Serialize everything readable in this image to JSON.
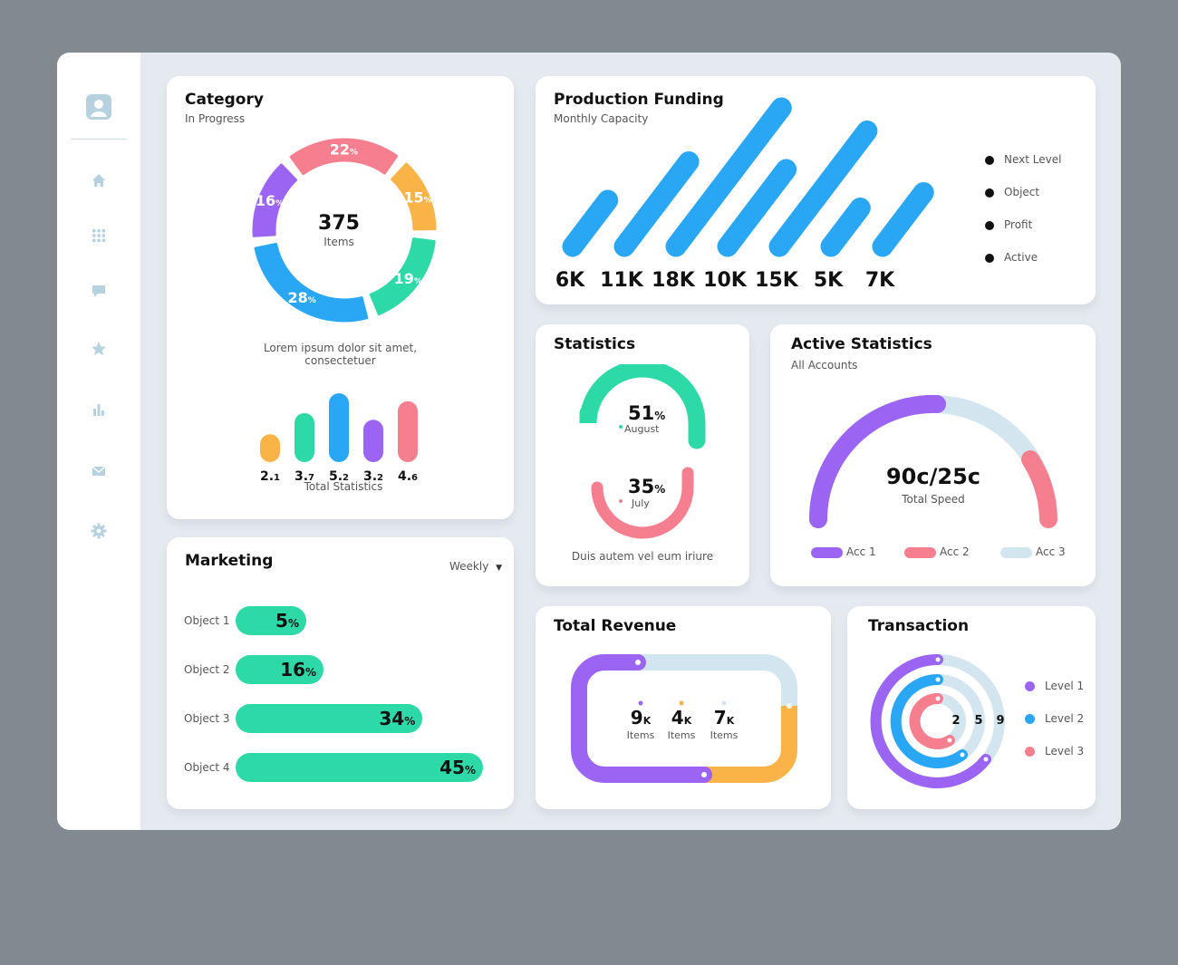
{
  "colors": {
    "purple": "#9c64f3",
    "pink": "#f57f8f",
    "orange": "#f9b347",
    "green": "#2ed9a8",
    "blue": "#2aa7f4",
    "lightblue": "#d3e6f0",
    "sidebar_icon": "#b6d2e0"
  },
  "sidebar": {
    "items": [
      {
        "icon": "user-avatar-icon"
      },
      {
        "icon": "home-icon"
      },
      {
        "icon": "grid-icon"
      },
      {
        "icon": "chat-icon"
      },
      {
        "icon": "star-icon"
      },
      {
        "icon": "bar-chart-icon"
      },
      {
        "icon": "mail-icon"
      },
      {
        "icon": "gear-icon"
      }
    ]
  },
  "category": {
    "title": "Category",
    "subtitle": "In Progress",
    "center_value": "375",
    "center_label": "Items",
    "description_line1": "Lorem ipsum dolor sit amet,",
    "description_line2": "consectetuer",
    "mini_chart_label": "Total Statistics"
  },
  "production": {
    "title": "Production Funding",
    "subtitle": "Monthly Capacity",
    "legend": [
      "Next Level",
      "Object",
      "Profit",
      "Active"
    ]
  },
  "statistics": {
    "title": "Statistics",
    "top_value": "51",
    "top_unit": "%",
    "top_label": "August",
    "bottom_value": "35",
    "bottom_unit": "%",
    "bottom_label": "July",
    "footer": "Duis autem vel eum iriure"
  },
  "active_statistics": {
    "title": "Active Statistics",
    "subtitle": "All Accounts",
    "value": "90c/25c",
    "label": "Total Speed",
    "legend": [
      "Acc 1",
      "Acc 2",
      "Acc 3"
    ]
  },
  "marketing": {
    "title": "Marketing",
    "period": "Weekly",
    "rows": [
      {
        "label": "Object 1",
        "value": "5",
        "unit": "%"
      },
      {
        "label": "Object 2",
        "value": "16",
        "unit": "%"
      },
      {
        "label": "Object 3",
        "value": "34",
        "unit": "%"
      },
      {
        "label": "Object 4",
        "value": "45",
        "unit": "%"
      }
    ]
  },
  "total_revenue": {
    "title": "Total Revenue",
    "items": [
      {
        "value": "9",
        "unit": "K",
        "label": "Items"
      },
      {
        "value": "4",
        "unit": "K",
        "label": "Items"
      },
      {
        "value": "7",
        "unit": "K",
        "label": "Items"
      }
    ]
  },
  "transaction": {
    "title": "Transaction",
    "ring_labels": [
      "2",
      "5",
      "9"
    ],
    "legend": [
      "Level 1",
      "Level 2",
      "Level 3"
    ]
  },
  "chart_data": [
    {
      "type": "pie",
      "variant": "donut",
      "categories": [
        "22",
        "15",
        "19",
        "28",
        "16"
      ],
      "values": [
        22,
        15,
        19,
        28,
        16
      ],
      "unit": "%",
      "colors": [
        "#f57f8f",
        "#f9b347",
        "#2ed9a8",
        "#2aa7f4",
        "#9c64f3"
      ],
      "center_value": "375",
      "center_label": "Items"
    },
    {
      "type": "bar",
      "values": [
        2.1,
        3.7,
        5.2,
        3.2,
        4.6
      ],
      "labels": [
        "2.1",
        "3.7",
        "5.2",
        "3.2",
        "4.6"
      ],
      "colors": [
        "#f9b347",
        "#2ed9a8",
        "#2aa7f4",
        "#9c64f3",
        "#f57f8f"
      ],
      "xlabel": "Total Statistics"
    },
    {
      "type": "bar",
      "variant": "slanted",
      "values": [
        6,
        11,
        18,
        10,
        15,
        5,
        7
      ],
      "labels": [
        "6K",
        "11K",
        "18K",
        "10K",
        "15K",
        "5K",
        "7K"
      ],
      "color": "#2aa7f4"
    },
    {
      "type": "bar",
      "orientation": "horizontal",
      "categories": [
        "Object 1",
        "Object 2",
        "Object 3",
        "Object 4"
      ],
      "values": [
        5,
        16,
        34,
        45
      ],
      "unit": "%",
      "color": "#2ed9a8"
    }
  ]
}
